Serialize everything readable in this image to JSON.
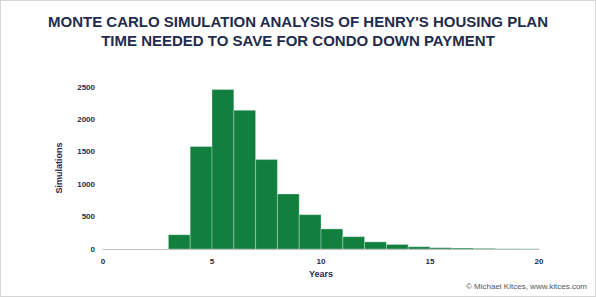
{
  "chart_data": {
    "type": "histogram",
    "title": "MONTE CARLO SIMULATION ANALYSIS OF HENRY'S HOUSING PLAN",
    "subtitle": "TIME NEEDED TO SAVE FOR CONDO DOWN PAYMENT",
    "x_label": "Years",
    "y_label": "Simulations",
    "annotations": [
      "© Michael Kitces, www.kitces.com"
    ],
    "bins": [
      3,
      4,
      5,
      6,
      7,
      8,
      9,
      10,
      11,
      12,
      13,
      14,
      15,
      16,
      17,
      18,
      19,
      20
    ],
    "values": [
      220,
      1580,
      2460,
      2140,
      1380,
      850,
      530,
      310,
      190,
      110,
      70,
      35,
      20,
      15,
      10,
      5,
      3
    ],
    "color": "#11803e",
    "xlim": [
      0,
      20
    ],
    "xticks": [
      0,
      5,
      10,
      15,
      20
    ],
    "ylim": [
      0,
      2500
    ],
    "yticks": [
      0,
      500,
      1000,
      1500,
      2000,
      2500
    ],
    "grid": false
  }
}
